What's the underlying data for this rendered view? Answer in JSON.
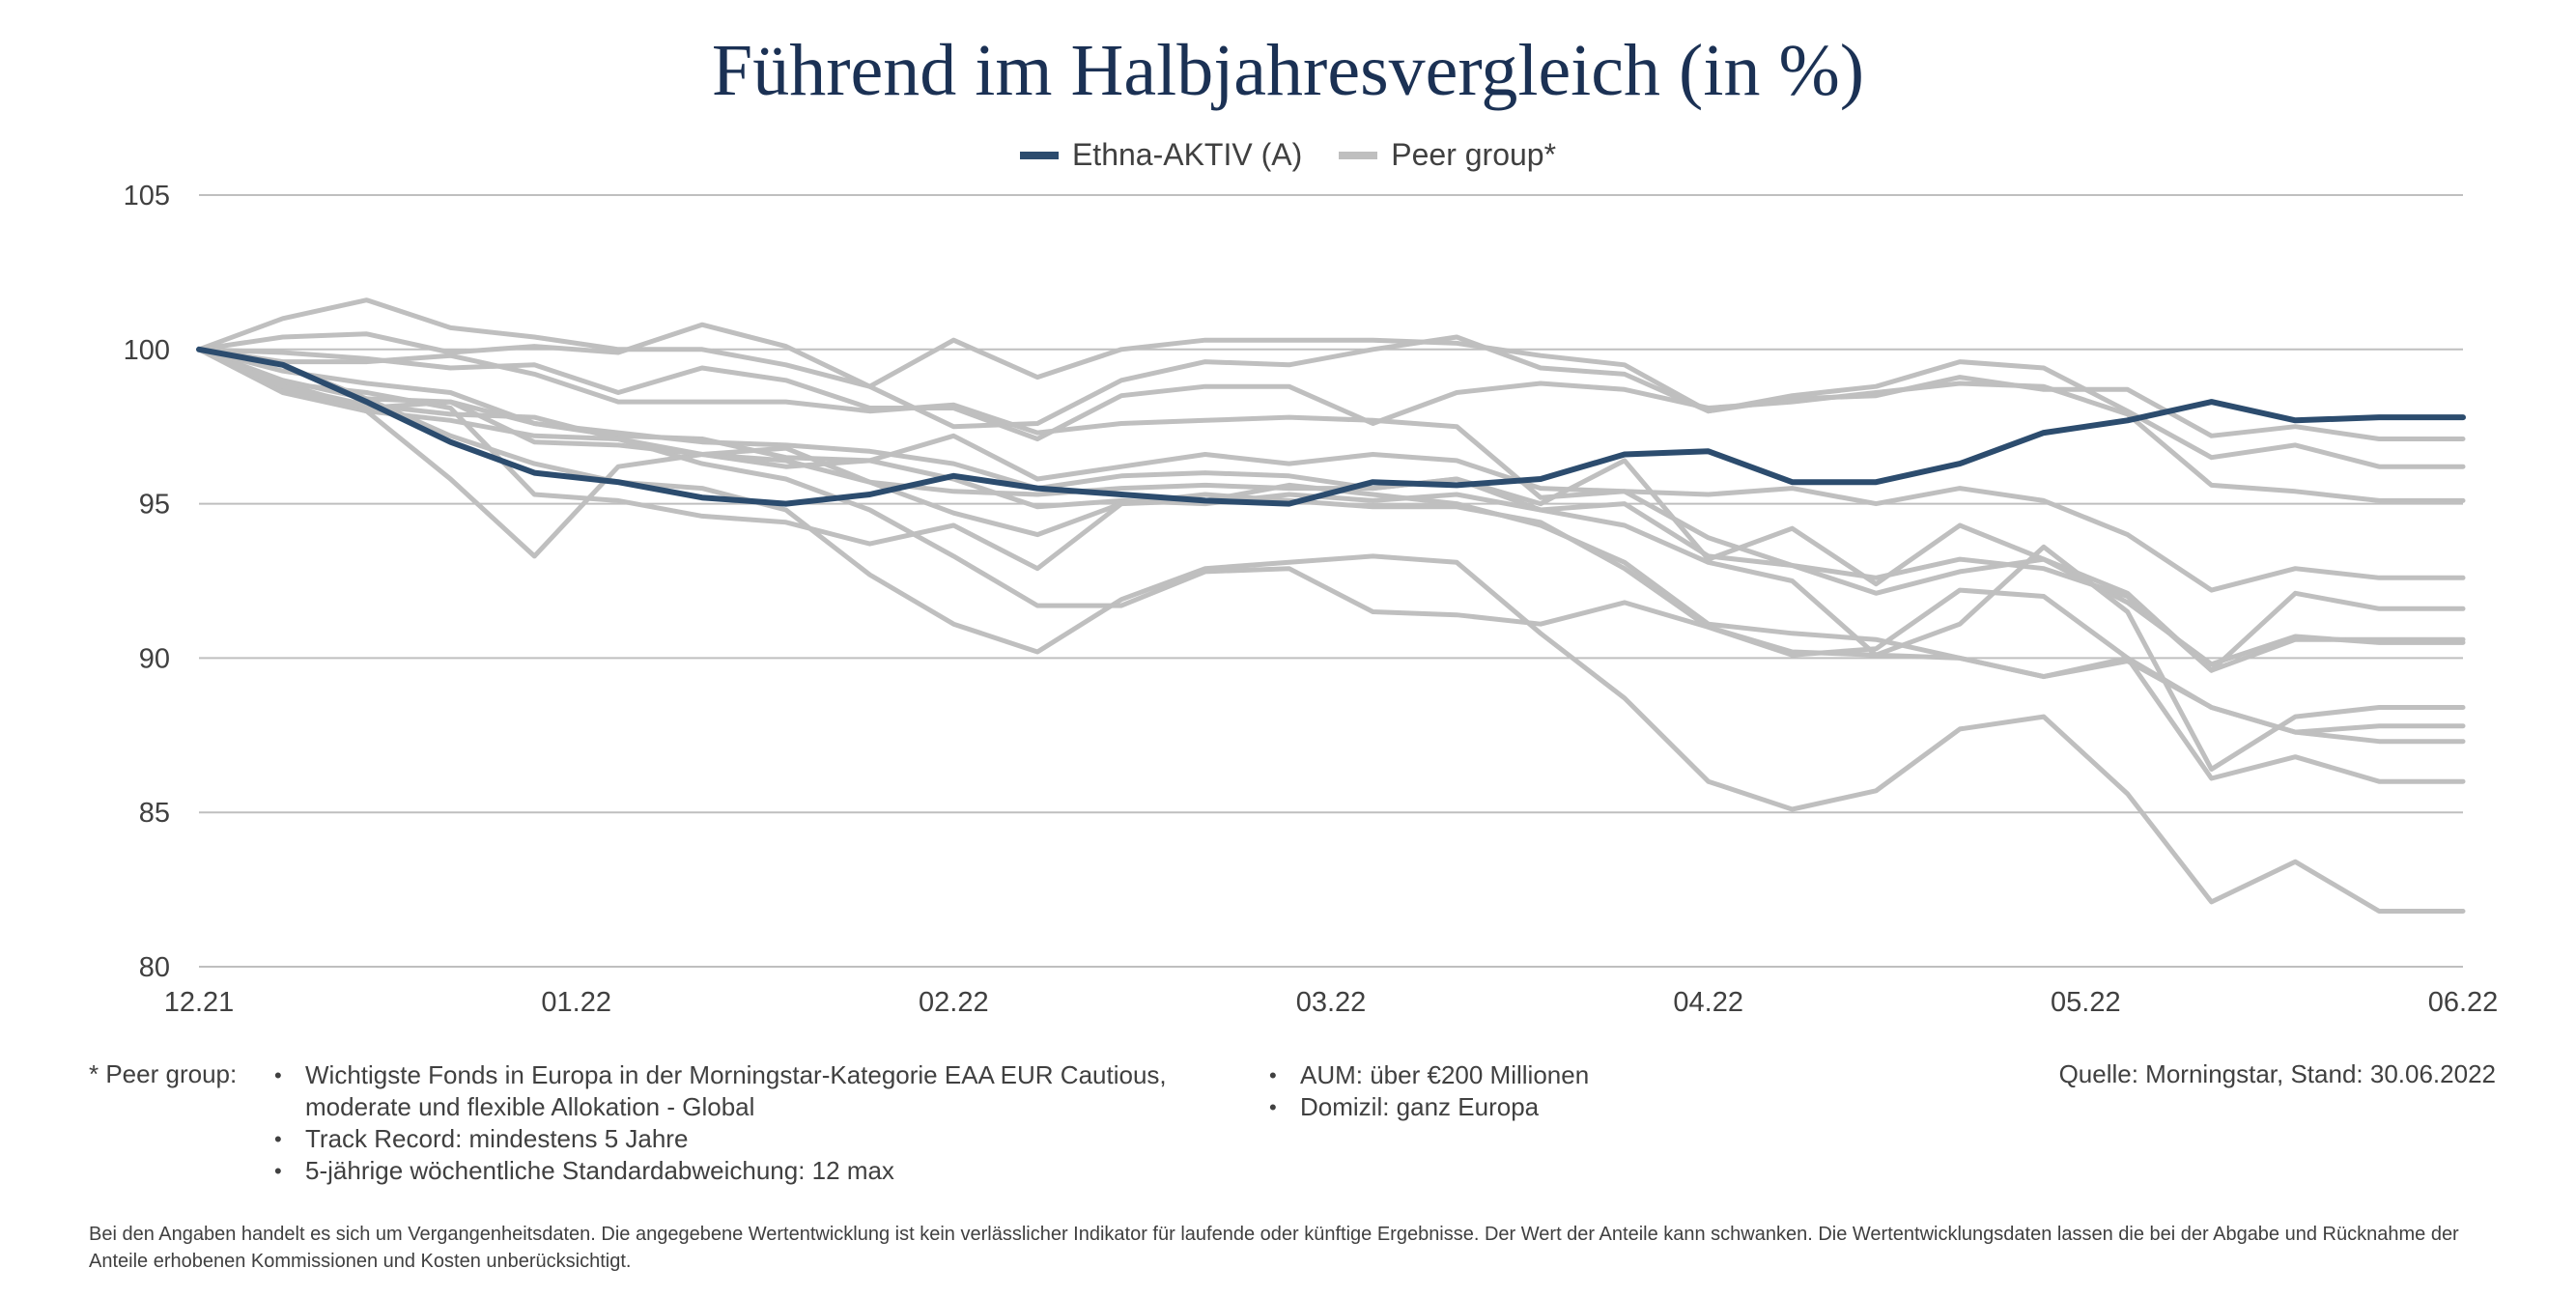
{
  "title": "Führend im Halbjahresvergleich (in %)",
  "legend": [
    {
      "label": "Ethna-AKTIV (A)",
      "color": "#2c4c6e"
    },
    {
      "label": "Peer group*",
      "color": "#bfbfbf"
    }
  ],
  "chart_data": {
    "type": "line",
    "x_tick_labels": [
      "12.21",
      "01.22",
      "02.22",
      "03.22",
      "04.22",
      "05.22",
      "06.22"
    ],
    "y_ticks": [
      105,
      100,
      95,
      90,
      85,
      80
    ],
    "ylim": [
      80,
      105
    ],
    "grid": true,
    "legend_position": "top",
    "n_points": 28,
    "series": [
      {
        "name": "Ethna-AKTIV (A)",
        "color": "#2c4c6e",
        "values": [
          100,
          99.5,
          98.3,
          97.0,
          96.0,
          95.7,
          95.2,
          95.0,
          95.3,
          95.9,
          95.5,
          95.3,
          95.1,
          95.0,
          95.7,
          95.6,
          95.8,
          96.6,
          96.7,
          95.7,
          95.7,
          96.3,
          97.3,
          97.7,
          98.3,
          97.7,
          97.8,
          97.8
        ]
      },
      {
        "color": "#bfbfbf",
        "values": [
          100,
          101.0,
          101.6,
          100.7,
          100.4,
          100.0,
          100.0,
          99.5,
          98.8,
          100.3,
          99.1,
          100.0,
          100.3,
          100.3,
          100.3,
          100.2,
          99.8,
          99.5,
          98.0,
          98.4,
          98.5,
          99.1,
          98.7,
          98.7,
          97.2,
          97.5,
          97.1,
          97.1
        ]
      },
      {
        "color": "#bfbfbf",
        "values": [
          100,
          100.4,
          100.5,
          99.9,
          100.1,
          99.9,
          100.8,
          100.1,
          98.8,
          97.5,
          97.6,
          99.0,
          99.6,
          99.5,
          100.0,
          100.4,
          99.4,
          99.2,
          98.0,
          98.5,
          98.8,
          99.6,
          99.4,
          98.0,
          96.5,
          96.9,
          96.2,
          96.2
        ]
      },
      {
        "color": "#bfbfbf",
        "values": [
          100,
          99.9,
          99.7,
          99.4,
          99.5,
          98.6,
          99.4,
          99.0,
          98.1,
          98.1,
          97.1,
          98.5,
          98.8,
          98.8,
          97.6,
          98.6,
          98.9,
          98.7,
          98.1,
          98.3,
          98.6,
          98.9,
          98.8,
          97.9,
          95.6,
          95.4,
          95.1,
          95.1
        ]
      },
      {
        "color": "#bfbfbf",
        "values": [
          100,
          99.6,
          99.6,
          99.8,
          99.2,
          98.3,
          98.3,
          98.3,
          98.0,
          98.2,
          97.3,
          97.6,
          97.7,
          97.8,
          97.7,
          97.5,
          95.2,
          95.4,
          93.9,
          93.0,
          92.1,
          92.8,
          93.2,
          92.1,
          89.6,
          90.6,
          90.6,
          90.6
        ]
      },
      {
        "color": "#bfbfbf",
        "values": [
          100,
          99.0,
          98.4,
          98.3,
          97.6,
          97.2,
          97.1,
          96.5,
          96.4,
          97.2,
          95.8,
          96.2,
          96.6,
          96.3,
          96.6,
          96.4,
          95.5,
          95.4,
          95.3,
          95.5,
          95.0,
          95.5,
          95.1,
          94.0,
          92.2,
          92.9,
          92.6,
          92.6
        ]
      },
      {
        "color": "#bfbfbf",
        "values": [
          100,
          99.3,
          98.9,
          98.6,
          97.6,
          97.3,
          97.0,
          96.9,
          96.7,
          96.3,
          95.5,
          95.9,
          96.0,
          95.9,
          95.5,
          95.8,
          95.0,
          96.4,
          93.2,
          94.2,
          92.4,
          94.3,
          93.2,
          91.8,
          89.8,
          90.7,
          90.5,
          90.5
        ]
      },
      {
        "color": "#bfbfbf",
        "values": [
          100,
          98.7,
          98.0,
          95.8,
          93.3,
          96.2,
          96.6,
          96.4,
          95.7,
          95.4,
          95.3,
          95.5,
          95.6,
          95.5,
          95.5,
          95.8,
          94.8,
          95.0,
          93.3,
          93.0,
          92.6,
          93.2,
          92.9,
          92.0,
          89.6,
          92.1,
          91.6,
          91.6
        ]
      },
      {
        "color": "#bfbfbf",
        "values": [
          100,
          98.6,
          98.0,
          97.7,
          97.2,
          97.1,
          96.6,
          96.8,
          95.7,
          94.7,
          94.0,
          95.0,
          95.1,
          95.6,
          95.3,
          95.0,
          94.3,
          93.1,
          91.1,
          90.8,
          90.6,
          90.0,
          89.4,
          89.9,
          88.4,
          87.6,
          87.8,
          87.8
        ]
      },
      {
        "color": "#bfbfbf",
        "values": [
          100,
          98.9,
          98.1,
          98.3,
          97.0,
          96.9,
          96.6,
          96.2,
          96.4,
          95.8,
          94.9,
          95.1,
          95.0,
          95.3,
          95.1,
          95.3,
          94.8,
          94.3,
          93.1,
          92.5,
          90.1,
          91.1,
          93.6,
          91.5,
          86.4,
          88.1,
          88.4,
          88.4
        ]
      },
      {
        "color": "#bfbfbf",
        "values": [
          100,
          98.9,
          98.6,
          98.1,
          95.3,
          95.1,
          94.6,
          94.4,
          93.7,
          94.3,
          92.9,
          95.0,
          95.3,
          95.1,
          94.9,
          94.9,
          94.4,
          92.9,
          91.0,
          90.1,
          90.3,
          92.2,
          92.0,
          90.0,
          86.1,
          86.8,
          86.0,
          86.0
        ]
      },
      {
        "color": "#bfbfbf",
        "values": [
          100,
          99.5,
          98.4,
          97.2,
          96.3,
          95.7,
          95.5,
          94.8,
          92.7,
          91.1,
          90.2,
          91.9,
          92.9,
          93.1,
          93.3,
          93.1,
          90.8,
          88.7,
          86.0,
          85.1,
          85.7,
          87.7,
          88.1,
          85.6,
          82.1,
          83.4,
          81.8,
          81.8
        ]
      },
      {
        "color": "#bfbfbf",
        "values": [
          100,
          98.8,
          98.2,
          97.9,
          97.8,
          97.1,
          96.3,
          95.8,
          94.8,
          93.3,
          91.7,
          91.7,
          92.8,
          92.9,
          91.5,
          91.4,
          91.1,
          91.8,
          91.0,
          90.2,
          90.1,
          90.0,
          89.4,
          90.0,
          88.4,
          87.6,
          87.3,
          87.3
        ]
      }
    ]
  },
  "footnote": {
    "star_label": "* Peer group:",
    "col1": [
      "Wichtigste Fonds in Europa in der Morningstar-Kategorie EAA EUR Cautious,",
      "moderate und flexible Allokation - Global",
      "Track Record: mindestens 5 Jahre",
      "5-jährige wöchentliche Standardabweichung: 12 max"
    ],
    "col2": [
      "AUM: über €200 Millionen",
      "Domizil: ganz Europa"
    ]
  },
  "source": "Quelle: Morningstar, Stand: 30.06.2022",
  "disclaimer": "Bei den Angaben handelt es sich um Vergangenheitsdaten. Die angegebene Wertentwicklung ist kein verlässlicher Indikator für laufende oder künftige Ergebnisse. Der Wert der Anteile kann schwanken. Die Wertentwicklungsdaten lassen die bei der Abgabe und Rücknahme der Anteile erhobenen Kommissionen und Kosten unberücksichtigt."
}
